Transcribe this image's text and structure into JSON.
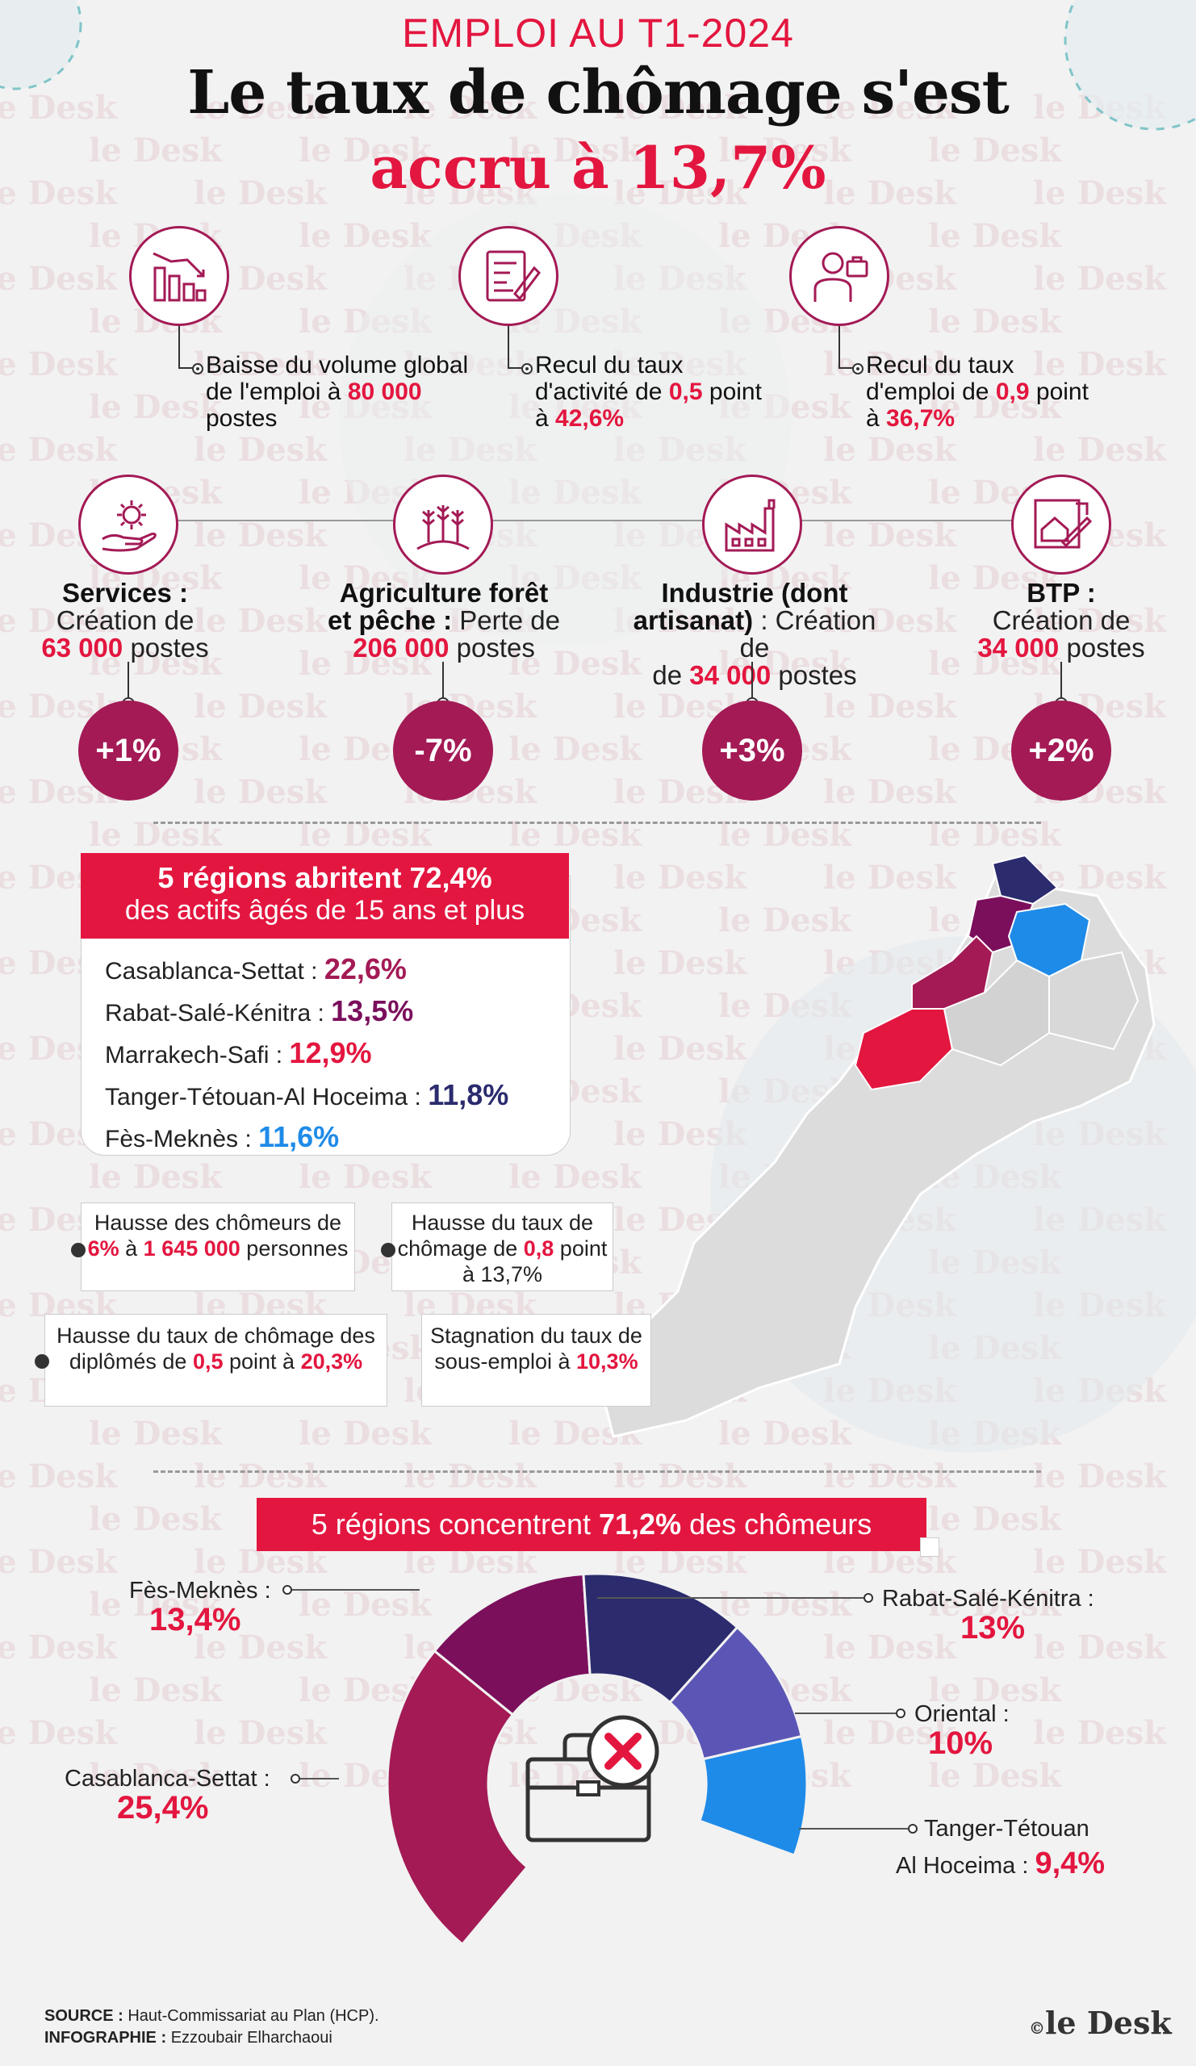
{
  "header": {
    "kicker": "EMPLOI AU T1-2024",
    "title_line1": "Le taux de chômage s'est",
    "title_line2": "accru à 13,7%"
  },
  "watermark_text": "le Desk",
  "kpis": [
    {
      "icon": "bar-chart-down-icon",
      "text_pre": "Baisse du volume global de l'emploi à ",
      "value": "80 000",
      "text_post": " postes"
    },
    {
      "icon": "clipboard-pen-icon",
      "text_pre": "Recul du taux d'activité de ",
      "value": "0,5",
      "text_mid": " point à ",
      "value2": "42,6%"
    },
    {
      "icon": "worker-briefcase-icon",
      "text_pre": "Recul du taux d'emploi de ",
      "value": "0,9",
      "text_mid": " point à ",
      "value2": "36,7%"
    }
  ],
  "sectors": [
    {
      "icon": "gear-hand-icon",
      "name": "Services :",
      "desc": "Création de",
      "value": "63 000",
      "unit": "postes",
      "change": "+1%"
    },
    {
      "icon": "wheat-field-icon",
      "name": "Agriculture forêt et pêche :",
      "desc": "Perte de",
      "value": "206 000",
      "unit": "postes",
      "change": "-7%"
    },
    {
      "icon": "factory-icon",
      "name": "Industrie (dont artisanat) :",
      "desc": "Création de",
      "value": "34 000",
      "unit": "postes",
      "change": "+3%"
    },
    {
      "icon": "blueprint-house-icon",
      "name": "BTP :",
      "desc": "Création de",
      "value": "34 000",
      "unit": "postes",
      "change": "+2%"
    }
  ],
  "regions_active": {
    "banner_pre": "5 régions abritent ",
    "banner_value": "72,4%",
    "banner_line2": "des actifs âgés de 15 ans et plus",
    "items": [
      {
        "name": "Casablanca-Settat :",
        "value": "22,6%",
        "color": "#a31a55"
      },
      {
        "name": "Rabat-Salé-Kénitra :",
        "value": "13,5%",
        "color": "#7b0f5c"
      },
      {
        "name": "Marrakech-Safi :",
        "value": "12,9%",
        "color": "#e3163f"
      },
      {
        "name": "Tanger-Tétouan-Al Hoceima :",
        "value": "11,8%",
        "color": "#2b2b6e"
      },
      {
        "name": "Fès-Meknès :",
        "value": "11,6%",
        "color": "#1f8be8"
      }
    ]
  },
  "facts": [
    {
      "pre": "Hausse des chômeurs de ",
      "v1": "6%",
      "mid": " à ",
      "v2": "1 645 000",
      "post": " personnes"
    },
    {
      "pre": "Hausse du taux de chômage de ",
      "v1": "0,8",
      "mid": " point à 13,7%",
      "v2": "",
      "post": ""
    },
    {
      "pre": "Hausse du taux de chômage des diplômés de ",
      "v1": "0,5",
      "mid": " point à ",
      "v2": "20,3%",
      "post": ""
    },
    {
      "pre": "Stagnation du taux de sous-emploi à ",
      "v1": "10,3%",
      "mid": "",
      "v2": "",
      "post": ""
    }
  ],
  "unemployed": {
    "banner_pre": "5 régions concentrent ",
    "banner_value": "71,2%",
    "banner_post": " des chômeurs"
  },
  "chart_data": {
    "type": "pie",
    "title": "5 régions concentrent 71,2% des chômeurs",
    "series": [
      {
        "name": "Fès-Meknès",
        "value": 13.4,
        "label": "13,4%",
        "color": "#7b0f5c"
      },
      {
        "name": "Rabat-Salé-Kénitra",
        "value": 13,
        "label": "13%",
        "color": "#2b2b6e"
      },
      {
        "name": "Oriental",
        "value": 10,
        "label": "10%",
        "color": "#5b56b5"
      },
      {
        "name": "Tanger-Tétouan Al Hoceima",
        "value": 9.4,
        "label": "9,4%",
        "color": "#1f8be8"
      },
      {
        "name": "Casablanca-Settat",
        "value": 25.4,
        "label": "25,4%",
        "color": "#a31a55"
      }
    ],
    "labels": {
      "fes": "Fès-Meknès :",
      "rabat": "Rabat-Salé-Kénitra :",
      "oriental": "Oriental :",
      "tanger1": "Tanger-Tétouan",
      "tanger2": "Al Hoceima :",
      "casa": "Casablanca-Settat :"
    }
  },
  "footer": {
    "source_label": "SOURCE :",
    "source": "Haut-Commissariat au Plan (HCP).",
    "info_label": "INFOGRAPHIE :",
    "info": "Ezzoubair Elharchaoui",
    "brand": "le Desk",
    "copyright": "©"
  }
}
